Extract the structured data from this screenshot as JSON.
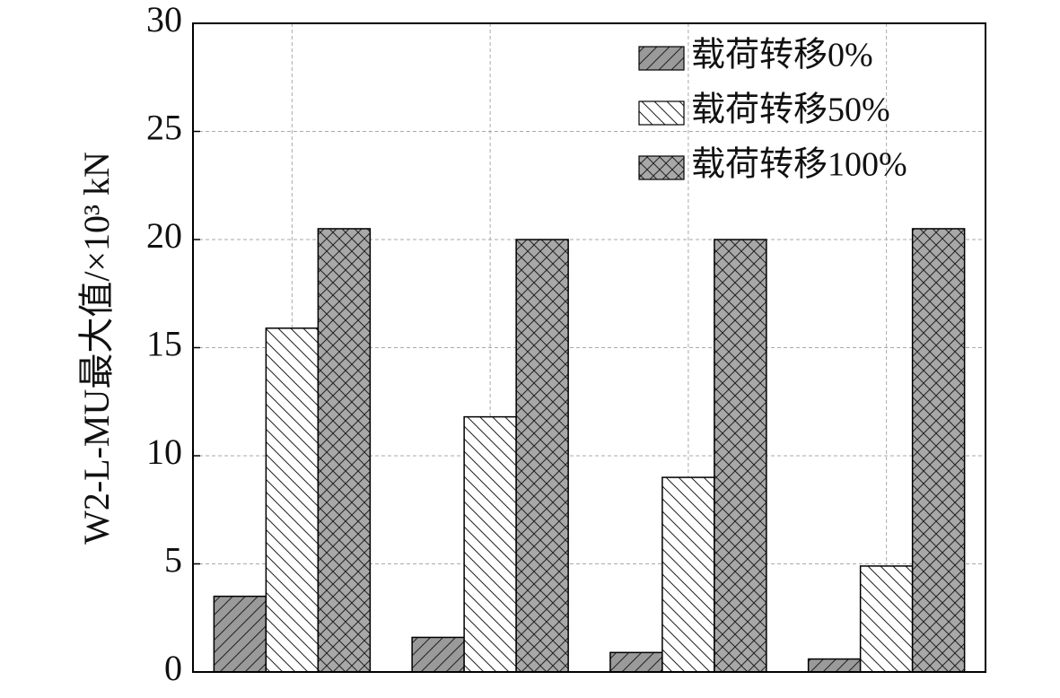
{
  "chart_data": {
    "type": "bar",
    "y_label": "W2-L-MU最大值/×10³ kN",
    "categories": [
      null,
      null,
      null,
      null
    ],
    "series": [
      {
        "name": "载荷转移0%",
        "color": "#9a9a9a",
        "hatch": "/",
        "values": [
          3.5,
          1.6,
          0.9,
          0.6
        ]
      },
      {
        "name": "载荷转移50%",
        "color": "#ffffff",
        "hatch": "\\",
        "values": [
          15.9,
          11.8,
          9.0,
          4.9
        ]
      },
      {
        "name": "载荷转移100%",
        "color": "#a8a8a8",
        "hatch": "x",
        "values": [
          20.5,
          20.0,
          20.0,
          20.5
        ]
      }
    ],
    "ylim": [
      0,
      30
    ],
    "yticks": [
      0,
      5,
      10,
      15,
      20,
      25,
      30
    ],
    "grid": true,
    "legend": "upper right"
  }
}
